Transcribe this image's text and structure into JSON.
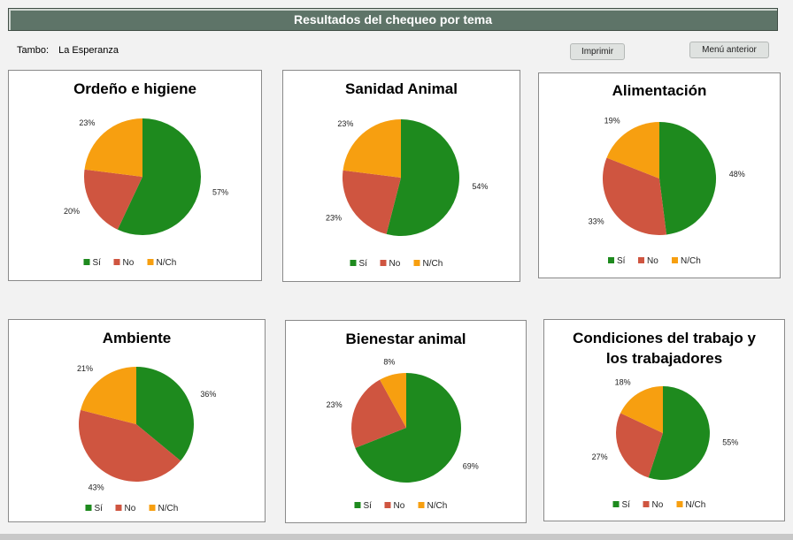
{
  "header": {
    "title": "Resultados del chequeo por tema"
  },
  "farm": {
    "label": "Tambo:",
    "name": "La Esperanza"
  },
  "buttons": {
    "print": "Imprimir",
    "back": "Menú anterior"
  },
  "colors": {
    "si": "#1e8a1e",
    "no": "#cf5540",
    "nch": "#f79f10"
  },
  "legend": [
    "Sí",
    "No",
    "N/Ch"
  ],
  "chart_data": [
    {
      "type": "pie",
      "title": [
        "Ordeño e higiene"
      ],
      "categories": [
        "Sí",
        "No",
        "N/Ch"
      ],
      "values": [
        57,
        20,
        23
      ],
      "labels": [
        "57%",
        "20%",
        "23%"
      ],
      "legend": "bottom"
    },
    {
      "type": "pie",
      "title": [
        "Sanidad Animal"
      ],
      "categories": [
        "Sí",
        "No",
        "N/Ch"
      ],
      "values": [
        54,
        23,
        23
      ],
      "labels": [
        "54%",
        "23%",
        "23%"
      ],
      "legend": "bottom"
    },
    {
      "type": "pie",
      "title": [
        "Alimentación"
      ],
      "categories": [
        "Sí",
        "No",
        "N/Ch"
      ],
      "values": [
        48,
        33,
        19
      ],
      "labels": [
        "48%",
        "33%",
        "19%"
      ],
      "legend": "bottom"
    },
    {
      "type": "pie",
      "title": [
        "Ambiente"
      ],
      "categories": [
        "Sí",
        "No",
        "N/Ch"
      ],
      "values": [
        36,
        43,
        21
      ],
      "labels": [
        "36%",
        "43%",
        "21%"
      ],
      "legend": "bottom"
    },
    {
      "type": "pie",
      "title": [
        "Bienestar animal"
      ],
      "categories": [
        "Sí",
        "No",
        "N/Ch"
      ],
      "values": [
        69,
        23,
        8
      ],
      "labels": [
        "69%",
        "23%",
        "8%"
      ],
      "legend": "bottom"
    },
    {
      "type": "pie",
      "title": [
        "Condiciones del trabajo y",
        "los trabajadores"
      ],
      "categories": [
        "Sí",
        "No",
        "N/Ch"
      ],
      "values": [
        55,
        27,
        18
      ],
      "labels": [
        "55%",
        "27%",
        "18%"
      ],
      "legend": "bottom"
    }
  ]
}
